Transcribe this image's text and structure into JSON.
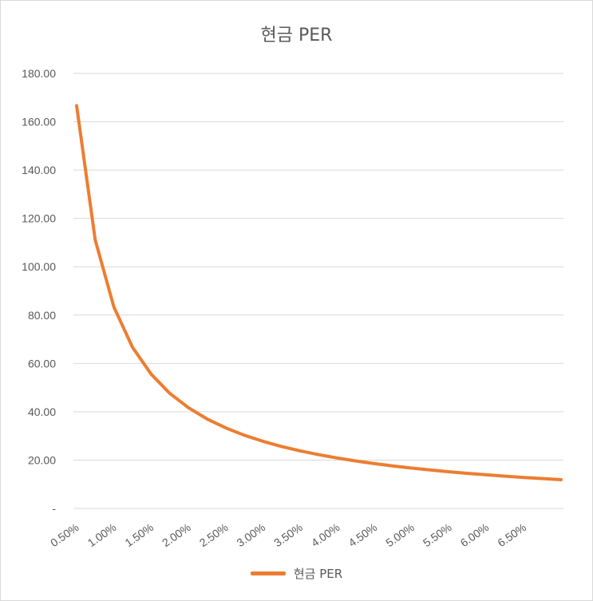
{
  "chart_data": {
    "type": "line",
    "title": "현금 PER",
    "xlabel": "",
    "ylabel": "",
    "color": "#ED7D31",
    "grid_color": "#d9d9d9",
    "legend_position": "bottom",
    "y_ticks": [
      "-",
      "20.00",
      "40.00",
      "60.00",
      "80.00",
      "100.00",
      "120.00",
      "140.00",
      "160.00",
      "180.00"
    ],
    "ylim": [
      0,
      180
    ],
    "x_ticks": [
      "0.50%",
      "1.00%",
      "1.50%",
      "2.00%",
      "2.50%",
      "3.00%",
      "3.50%",
      "4.00%",
      "4.50%",
      "5.00%",
      "5.50%",
      "6.00%",
      "6.50%"
    ],
    "x": [
      0.5,
      0.75,
      1.0,
      1.25,
      1.5,
      1.75,
      2.0,
      2.25,
      2.5,
      2.75,
      3.0,
      3.25,
      3.5,
      3.75,
      4.0,
      4.25,
      4.5,
      4.75,
      5.0,
      5.25,
      5.5,
      5.75,
      6.0,
      6.25,
      6.5,
      6.75,
      7.0
    ],
    "series": [
      {
        "name": "현금 PER",
        "values": [
          166.67,
          111.11,
          83.33,
          66.67,
          55.56,
          47.62,
          41.67,
          37.04,
          33.33,
          30.3,
          27.78,
          25.64,
          23.81,
          22.22,
          20.83,
          19.61,
          18.52,
          17.54,
          16.67,
          15.87,
          15.15,
          14.49,
          13.89,
          13.33,
          12.82,
          12.35,
          11.9
        ]
      }
    ]
  }
}
